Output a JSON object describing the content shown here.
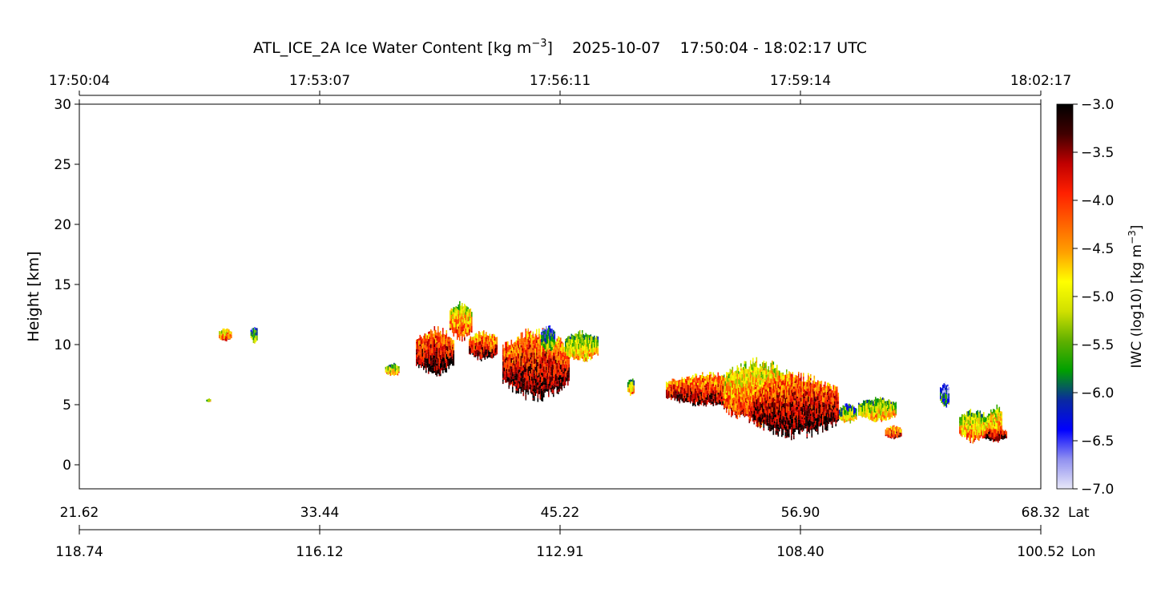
{
  "title": {
    "prefix": "ATL_ICE_2A Ice Water Content [kg m",
    "exponent": "−3",
    "suffix": "]    2025-10-07    17:50:04 - 18:02:17 UTC"
  },
  "colorbar": {
    "label_prefix": "IWC (log10) [kg m",
    "label_exponent": "−3",
    "label_suffix": "]",
    "ticks": [
      "−3.0",
      "−3.5",
      "−4.0",
      "−4.5",
      "−5.0",
      "−5.5",
      "−6.0",
      "−6.5",
      "−7.0"
    ],
    "range": [
      -7.0,
      -3.0
    ],
    "colors": [
      "#e8e8f8",
      "#9090f0",
      "#0000ff",
      "#0a2aa0",
      "#00a000",
      "#60b000",
      "#d0e000",
      "#ffff00",
      "#ffa000",
      "#ff6000",
      "#ff2000",
      "#c00000",
      "#400000",
      "#000000"
    ]
  },
  "chart_data": {
    "type": "heatmap",
    "title": "ATL_ICE_2A Ice Water Content [kg m−3]    2025-10-07    17:50:04 - 18:02:17 UTC",
    "ylabel": "Height [km]",
    "ylim": [
      -2,
      30
    ],
    "y_ticks": [
      "0",
      "5",
      "10",
      "15",
      "20",
      "25",
      "30"
    ],
    "x_time_ticks": [
      "17:50:04",
      "17:53:07",
      "17:56:11",
      "17:59:14",
      "18:02:17"
    ],
    "x_lat_ticks": [
      "21.62",
      "33.44",
      "45.22",
      "56.90",
      "68.32"
    ],
    "x_lat_label": "Lat",
    "x_lon_ticks": [
      "118.74",
      "116.12",
      "112.91",
      "108.40",
      "100.52"
    ],
    "x_lon_label": "Lon",
    "x_range": [
      0,
      1
    ],
    "value_label": "IWC (log10) [kg m−3]",
    "value_range": [
      -7.0,
      -3.0
    ],
    "grid": false,
    "cloud_features": [
      {
        "x": [
          0.145,
          0.158
        ],
        "bottom": 10.3,
        "top": 11.3,
        "iwc": -4.2
      },
      {
        "x": [
          0.178,
          0.185
        ],
        "bottom": 10.2,
        "top": 11.5,
        "iwc": -5.3
      },
      {
        "x": [
          0.132,
          0.137
        ],
        "bottom": 5.2,
        "top": 5.5,
        "iwc": -4.8
      },
      {
        "x": [
          0.318,
          0.333
        ],
        "bottom": 7.4,
        "top": 8.4,
        "iwc": -4.6
      },
      {
        "x": [
          0.35,
          0.39
        ],
        "bottom": 7.6,
        "top": 11.2,
        "iwc": -3.4
      },
      {
        "x": [
          0.385,
          0.408
        ],
        "bottom": 10.5,
        "top": 13.5,
        "iwc": -4.3
      },
      {
        "x": [
          0.405,
          0.435
        ],
        "bottom": 8.8,
        "top": 11.0,
        "iwc": -3.6
      },
      {
        "x": [
          0.44,
          0.51
        ],
        "bottom": 5.7,
        "top": 11.0,
        "iwc": -3.5
      },
      {
        "x": [
          0.48,
          0.495
        ],
        "bottom": 9.5,
        "top": 11.5,
        "iwc": -5.4
      },
      {
        "x": [
          0.505,
          0.54
        ],
        "bottom": 8.7,
        "top": 11.0,
        "iwc": -4.8
      },
      {
        "x": [
          0.57,
          0.577
        ],
        "bottom": 5.8,
        "top": 7.2,
        "iwc": -4.6
      },
      {
        "x": [
          0.61,
          0.7
        ],
        "bottom": 5.0,
        "top": 7.5,
        "iwc": -3.6
      },
      {
        "x": [
          0.67,
          0.74
        ],
        "bottom": 3.5,
        "top": 8.5,
        "iwc": -4.2
      },
      {
        "x": [
          0.7,
          0.79
        ],
        "bottom": 2.5,
        "top": 7.3,
        "iwc": -3.4
      },
      {
        "x": [
          0.79,
          0.808
        ],
        "bottom": 3.5,
        "top": 5.0,
        "iwc": -5.0
      },
      {
        "x": [
          0.81,
          0.85
        ],
        "bottom": 3.7,
        "top": 5.5,
        "iwc": -4.7
      },
      {
        "x": [
          0.838,
          0.855
        ],
        "bottom": 2.2,
        "top": 3.2,
        "iwc": -3.7
      },
      {
        "x": [
          0.895,
          0.905
        ],
        "bottom": 4.8,
        "top": 6.8,
        "iwc": -5.8
      },
      {
        "x": [
          0.915,
          0.945
        ],
        "bottom": 2.0,
        "top": 4.5,
        "iwc": -4.6
      },
      {
        "x": [
          0.945,
          0.96
        ],
        "bottom": 2.0,
        "top": 4.8,
        "iwc": -4.3
      },
      {
        "x": [
          0.94,
          0.965
        ],
        "bottom": 2.0,
        "top": 3.0,
        "iwc": -3.2
      }
    ]
  }
}
